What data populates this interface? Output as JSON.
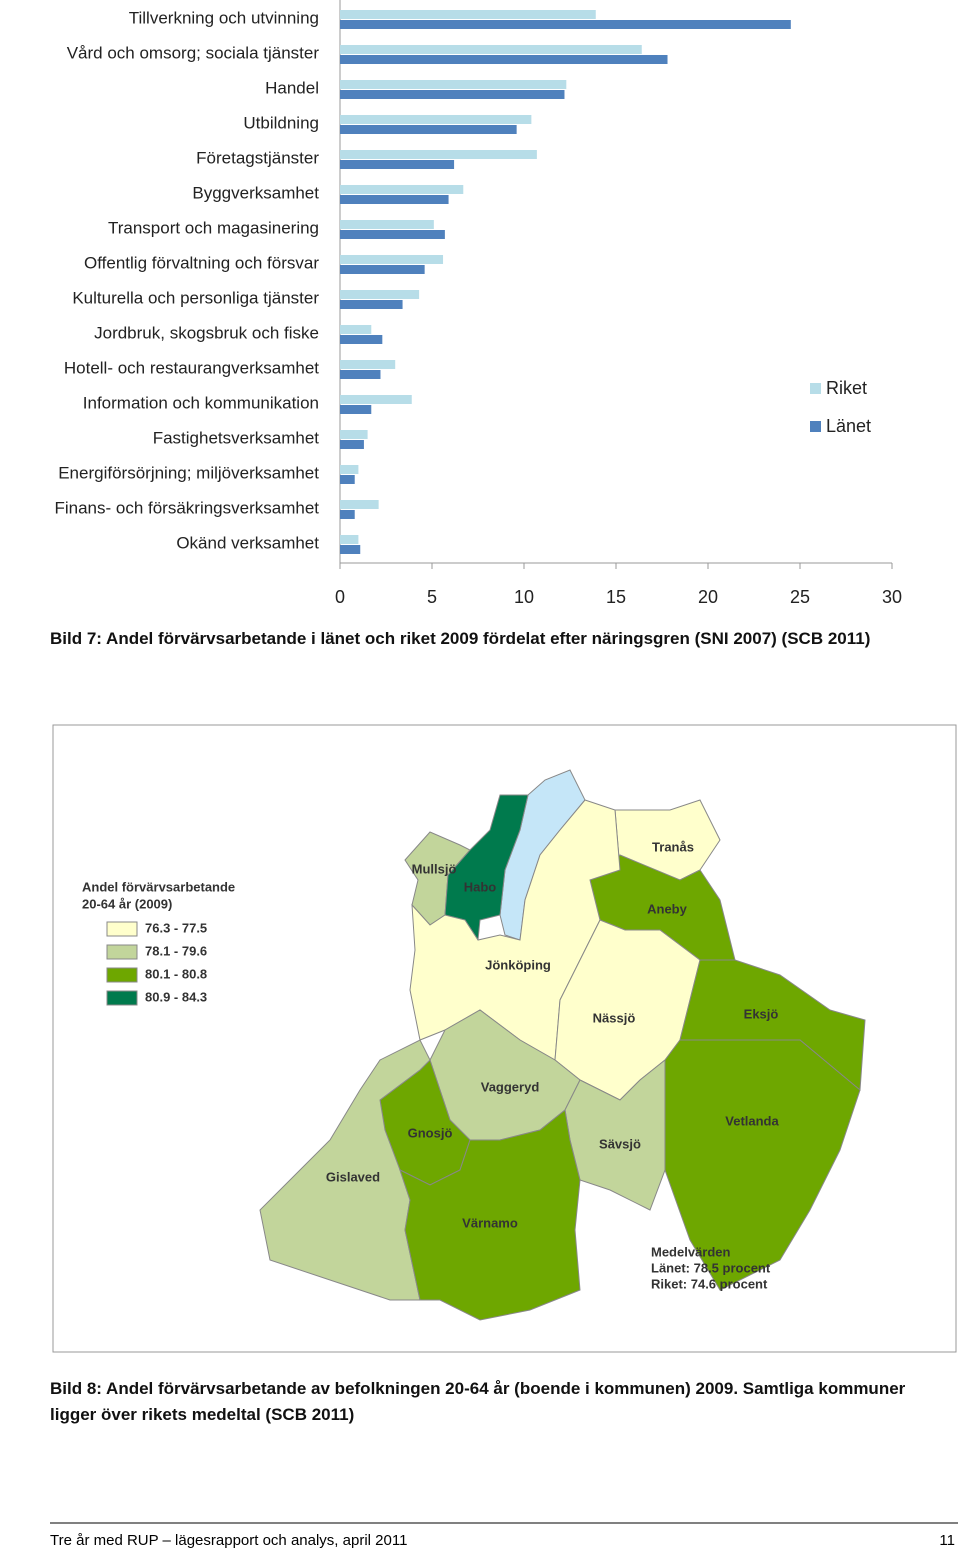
{
  "chart_data": {
    "type": "bar",
    "orientation": "horizontal",
    "categories": [
      "Tillverkning och utvinning",
      "Vård och omsorg; sociala tjänster",
      "Handel",
      "Utbildning",
      "Företagstjänster",
      "Byggverksamhet",
      "Transport och magasinering",
      "Offentlig förvaltning och försvar",
      "Kulturella och personliga tjänster",
      "Jordbruk, skogsbruk och fiske",
      "Hotell- och restaurangverksamhet",
      "Information och kommunikation",
      "Fastighetsverksamhet",
      "Energiförsörjning; miljöverksamhet",
      "Finans- och försäkringsverksamhet",
      "Okänd verksamhet"
    ],
    "series": [
      {
        "name": "Riket",
        "color": "#b7dde8",
        "values": [
          13.9,
          16.4,
          12.3,
          10.4,
          10.7,
          6.7,
          5.1,
          5.6,
          4.3,
          1.7,
          3.0,
          3.9,
          1.5,
          1.0,
          2.1,
          1.0
        ]
      },
      {
        "name": "Länet",
        "color": "#4f81bd",
        "values": [
          24.5,
          17.8,
          12.2,
          9.6,
          6.2,
          5.9,
          5.7,
          4.6,
          3.4,
          2.3,
          2.2,
          1.7,
          1.3,
          0.8,
          0.8,
          1.1
        ]
      }
    ],
    "xlim": [
      0,
      30
    ],
    "xticks": [
      0,
      5,
      10,
      15,
      20,
      25,
      30
    ],
    "legend": "right"
  },
  "captions": [
    "Bild 7: Andel förvärvsarbetande i länet och riket 2009 fördelat efter näringsgren (SNI 2007) (SCB 2011)",
    "Bild 8: Andel förvärvsarbetande av befolkningen 20-64 år (boende i kommunen) 2009. Samtliga kommuner ligger över rikets medeltal (SCB 2011)"
  ],
  "map": {
    "legend_title": [
      "Andel förvärvsarbetande",
      "20-64 år (2009)"
    ],
    "legend_items": [
      {
        "label": "76.3 - 77.5",
        "color": "#ffffcc"
      },
      {
        "label": "78.1 - 79.6",
        "color": "#c2d59b"
      },
      {
        "label": "80.1 - 80.8",
        "color": "#6ea700"
      },
      {
        "label": "80.9 - 84.3",
        "color": "#007a4d"
      }
    ],
    "municipalities": [
      "Mullsjö",
      "Habo",
      "Tranås",
      "Aneby",
      "Jönköping",
      "Nässjö",
      "Eksjö",
      "Vaggeryd",
      "Gnosjö",
      "Sävsjö",
      "Vetlanda",
      "Gislaved",
      "Värnamo"
    ],
    "averages": [
      "Medelvärden",
      "Länet: 78.5 procent",
      "Riket: 74.6 procent"
    ]
  },
  "footer": {
    "text": "Tre år med RUP – lägesrapport och analys, april 2011",
    "page": "11"
  }
}
